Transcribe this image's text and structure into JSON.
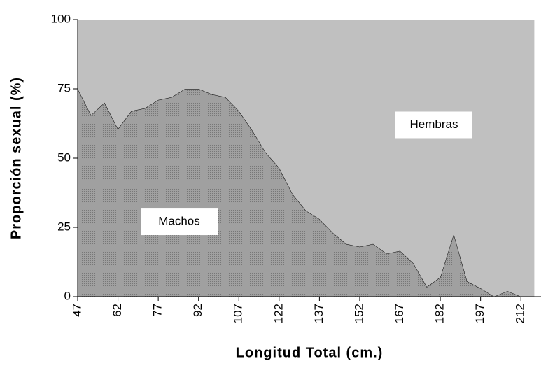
{
  "chart_data": {
    "type": "area",
    "stacked": true,
    "x_label": "Longitud Total (cm.)",
    "y_label": "Proporción sexual (%)",
    "x": [
      47,
      52,
      57,
      62,
      67,
      72,
      77,
      82,
      87,
      92,
      97,
      102,
      107,
      112,
      117,
      122,
      127,
      132,
      137,
      142,
      147,
      152,
      157,
      162,
      167,
      172,
      177,
      182,
      187,
      192,
      197,
      202,
      207,
      212,
      217
    ],
    "series": [
      {
        "name": "Machos",
        "color": "#999999",
        "values": [
          75,
          65.5,
          70,
          60.5,
          67,
          68,
          71,
          72,
          75,
          75,
          73,
          72,
          67,
          60,
          52,
          46.5,
          37,
          31,
          28,
          23,
          19,
          18,
          19,
          15.5,
          16.5,
          12,
          3.5,
          7,
          22.5,
          5.5,
          3,
          0,
          2,
          0,
          0
        ]
      },
      {
        "name": "Hembras",
        "color": "#c0c0c0",
        "values": [
          25,
          34.5,
          30,
          39.5,
          33,
          32,
          29,
          28,
          25,
          25,
          27,
          28,
          33,
          40,
          48,
          53.5,
          63,
          69,
          72,
          77,
          81,
          82,
          81,
          84.5,
          83.5,
          88,
          96.5,
          93,
          77.5,
          94.5,
          97,
          100,
          98,
          100,
          100
        ]
      }
    ],
    "xlim": [
      47,
      219.5
    ],
    "xticks": [
      47,
      62,
      77,
      92,
      107,
      122,
      137,
      152,
      167,
      182,
      197,
      212
    ],
    "ylim": [
      0,
      100
    ],
    "yticks": [
      0,
      25,
      50,
      75,
      100
    ]
  }
}
